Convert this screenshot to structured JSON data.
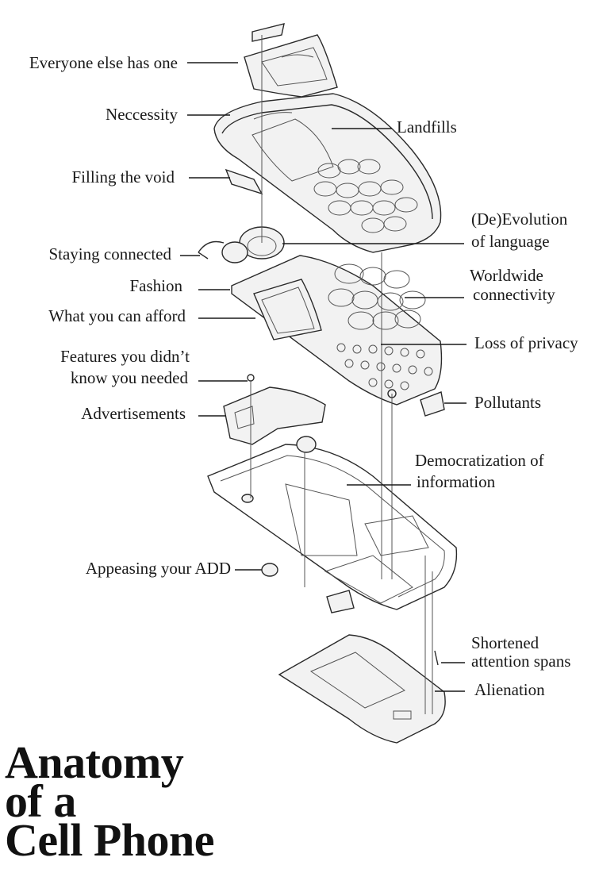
{
  "title": {
    "line1": "Anatomy",
    "line2": "of  a",
    "line3": "Cell Phone"
  },
  "labels": {
    "everyone_else": "Everyone else has one",
    "neccessity": "Neccessity",
    "landfills": "Landfills",
    "filling_void": "Filling the void",
    "de_evolution_1": "(De)Evolution",
    "de_evolution_2": "of  language",
    "staying_connected": "Staying connected",
    "fashion": "Fashion",
    "worldwide_1": "Worldwide",
    "worldwide_2": "connectivity",
    "afford": "What you can afford",
    "privacy": "Loss of  privacy",
    "features_1": "Features you didn’t",
    "features_2": "know you needed",
    "pollutants": "Pollutants",
    "advertisements": "Advertisements",
    "democratization_1": "Democratization of",
    "democratization_2": "information",
    "add": "Appeasing your ADD",
    "shortened_1": "Shortened",
    "shortened_2": "attention spans",
    "alienation": "Alienation"
  }
}
